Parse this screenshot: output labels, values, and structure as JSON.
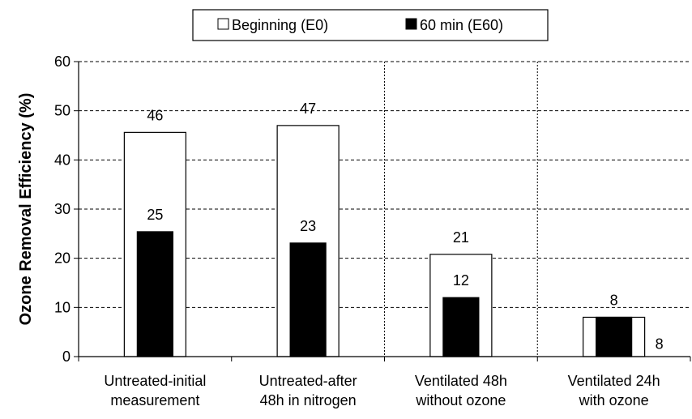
{
  "chart_data": {
    "type": "bar",
    "title": "",
    "xlabel": "",
    "ylabel": "Ozone Removal Efficiency (%)",
    "ylim": [
      0,
      60
    ],
    "yticks": [
      "0",
      "10",
      "20",
      "30",
      "40",
      "50",
      "60"
    ],
    "grid": true,
    "legend_placement": "top-center",
    "categories": [
      [
        "Untreated-initial",
        "measurement"
      ],
      [
        "Untreated-after",
        "48h in nitrogen"
      ],
      [
        "Ventilated 48h",
        "without ozone"
      ],
      [
        "Ventilated 24h",
        "with ozone"
      ]
    ],
    "series": [
      {
        "name": "Beginning (E0)",
        "color": "#ffffff",
        "values": [
          45.6,
          47.0,
          20.8,
          8.0
        ],
        "labels": [
          "46",
          "47",
          "21",
          "8"
        ]
      },
      {
        "name": "60 min (E60)",
        "color": "#000000",
        "values": [
          25.4,
          23.1,
          12.0,
          8.0
        ],
        "labels": [
          "25",
          "23",
          "12",
          "8"
        ]
      }
    ]
  }
}
